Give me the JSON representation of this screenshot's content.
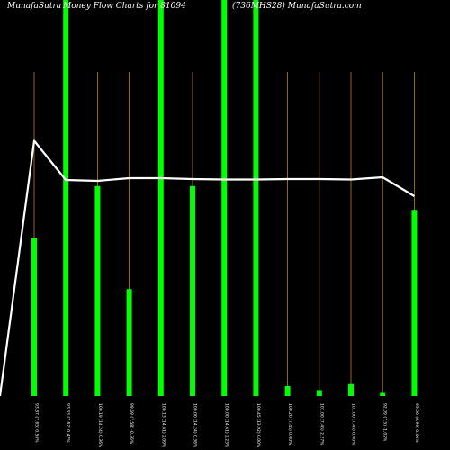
{
  "header": {
    "site_left": "MunafaSutra",
    "title_main": "Money Flow  Charts for 81094",
    "title_code": "(736MHS28) MunafaSutra.com"
  },
  "chart_data": {
    "type": "bar",
    "title": "Money Flow  Charts for 81094",
    "categories": [
      "93.87 (7.65) 0.56%",
      "93.33 (7.62) 0.42%",
      "100.19 (14.24) 0.36%",
      "99.69 (7.58) -0.36%",
      "100.13 (14.61) 2.09%",
      "100.00 (14.24) 0.36%",
      "100.00 (14.61) 2.23%",
      "100.45 (13.92) 0.00%",
      "100.20 (7.45) 0.00%",
      "101.00 (7.45) 2.27%",
      "101.00 (7.45) 0.00%",
      "92.09 (7.5) -1.02%",
      "93.00 (6.99) 0.00%"
    ],
    "bar_heights": [
      0.4,
      1.0,
      0.53,
      0.27,
      1.0,
      0.53,
      1.0,
      1.0,
      0.025,
      0.015,
      0.03,
      0.008,
      0.47
    ],
    "bar_peaks": [
      0.85,
      0.85,
      0.85,
      0.85,
      0.85,
      0.85,
      0.85,
      0.85,
      0.85,
      0.85,
      0.85,
      0.85,
      0.85
    ],
    "price_line": [
      0.065,
      0.5,
      0.51,
      0.48,
      0.48,
      0.49,
      0.495,
      0.495,
      0.49,
      0.49,
      0.495,
      0.47,
      0.68
    ],
    "line_start": 1.0,
    "colors": {
      "background": "#000000",
      "bar": "#00ff00",
      "thin_line": "#b8860b",
      "price_line": "#ffffff",
      "text": "#ffffff"
    }
  }
}
